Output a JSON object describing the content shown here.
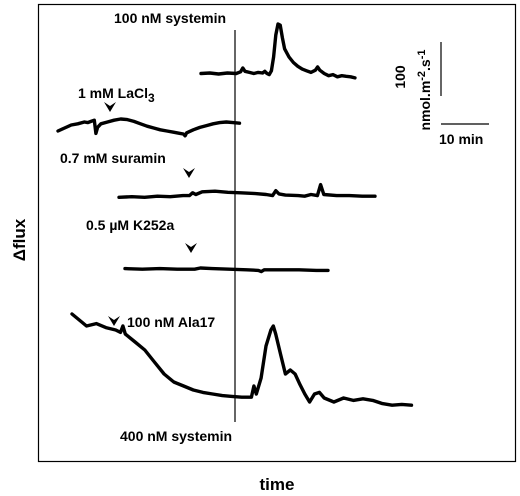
{
  "chart_data": {
    "type": "line",
    "title": "",
    "xlabel": "time",
    "ylabel": "Δflux",
    "scale_bar": {
      "y_value": "100",
      "y_unit": "nmol.m-2.s-1",
      "x_value": "10 min"
    },
    "traces": [
      {
        "label": "100 nM systemin",
        "points": [
          [
            0,
            -10
          ],
          [
            2,
            -9
          ],
          [
            4,
            -11
          ],
          [
            6,
            -9
          ],
          [
            8,
            -10
          ],
          [
            9,
            -7
          ],
          [
            9.5,
            0
          ],
          [
            10,
            -6
          ],
          [
            11,
            -8
          ],
          [
            12,
            -10
          ],
          [
            13,
            -8
          ],
          [
            14,
            -9
          ],
          [
            14.5,
            -6
          ],
          [
            15,
            -10
          ],
          [
            15.5,
            -12
          ],
          [
            16,
            -5
          ],
          [
            16.5,
            20
          ],
          [
            17,
            60
          ],
          [
            17.5,
            80
          ],
          [
            18,
            78
          ],
          [
            18.5,
            55
          ],
          [
            19,
            35
          ],
          [
            20,
            20
          ],
          [
            21,
            10
          ],
          [
            22,
            3
          ],
          [
            23,
            -2
          ],
          [
            24,
            -5
          ],
          [
            25,
            -8
          ],
          [
            26,
            -4
          ],
          [
            26.5,
            2
          ],
          [
            27,
            -4
          ],
          [
            28,
            -10
          ],
          [
            29,
            -14
          ],
          [
            30,
            -12
          ],
          [
            31,
            -16
          ],
          [
            32,
            -14
          ],
          [
            33,
            -15
          ],
          [
            34,
            -16
          ],
          [
            35,
            -18
          ]
        ]
      },
      {
        "label": "1 mM LaCl3",
        "points": [
          [
            0,
            -10
          ],
          [
            2,
            -5
          ],
          [
            4,
            0
          ],
          [
            6,
            2
          ],
          [
            8,
            5
          ],
          [
            9,
            4
          ],
          [
            10,
            6
          ],
          [
            11,
            8
          ],
          [
            11.5,
            -14
          ],
          [
            12,
            -4
          ],
          [
            13,
            2
          ],
          [
            15,
            5
          ],
          [
            17,
            8
          ],
          [
            19,
            10
          ],
          [
            21,
            9
          ],
          [
            23,
            6
          ],
          [
            25,
            2
          ],
          [
            27,
            -2
          ],
          [
            29,
            -5
          ],
          [
            31,
            -8
          ],
          [
            33,
            -10
          ],
          [
            35,
            -12
          ],
          [
            37,
            -14
          ],
          [
            38,
            -15
          ],
          [
            38.5,
            -18
          ],
          [
            39,
            -13
          ],
          [
            41,
            -8
          ],
          [
            43,
            -4
          ],
          [
            45,
            -1
          ],
          [
            47,
            2
          ],
          [
            49,
            4
          ],
          [
            51,
            5
          ],
          [
            53,
            4
          ],
          [
            55,
            3
          ]
        ]
      },
      {
        "label": "0.7 mM suramin",
        "points": [
          [
            0,
            -15
          ],
          [
            2,
            -14
          ],
          [
            4,
            -15
          ],
          [
            6,
            -13
          ],
          [
            8,
            -14
          ],
          [
            10,
            -12
          ],
          [
            11,
            -12
          ],
          [
            11.5,
            -7
          ],
          [
            12,
            -10
          ],
          [
            13,
            -5
          ],
          [
            15,
            -4
          ],
          [
            17,
            -6
          ],
          [
            19,
            -7
          ],
          [
            21,
            -8
          ],
          [
            23,
            -10
          ],
          [
            24,
            -12
          ],
          [
            24.5,
            -3
          ],
          [
            25,
            -9
          ],
          [
            26,
            -11
          ],
          [
            28,
            -12
          ],
          [
            29,
            -13
          ],
          [
            30,
            -10
          ],
          [
            31,
            -12
          ],
          [
            31.5,
            8
          ],
          [
            32,
            -10
          ],
          [
            34,
            -12
          ],
          [
            36,
            -12
          ],
          [
            38,
            -13
          ],
          [
            40,
            -13
          ]
        ]
      },
      {
        "label": "0.5 µM K252a",
        "points": [
          [
            0,
            -6
          ],
          [
            3,
            -7
          ],
          [
            6,
            -6
          ],
          [
            9,
            -7
          ],
          [
            12,
            -7
          ],
          [
            13,
            -5
          ],
          [
            15,
            -6
          ],
          [
            18,
            -7
          ],
          [
            21,
            -8
          ],
          [
            23,
            -9
          ],
          [
            23.5,
            -11
          ],
          [
            24,
            -8
          ],
          [
            27,
            -8
          ],
          [
            30,
            -8
          ],
          [
            33,
            -9
          ],
          [
            35,
            -9
          ]
        ]
      },
      {
        "label": "400 nM systemin",
        "treatment_label": "100 nM Ala17",
        "points": [
          [
            0,
            20
          ],
          [
            2,
            10
          ],
          [
            3,
            5
          ],
          [
            5,
            8
          ],
          [
            7,
            3
          ],
          [
            9,
            0
          ],
          [
            10,
            -3
          ],
          [
            10.5,
            5
          ],
          [
            11,
            -5
          ],
          [
            13,
            -15
          ],
          [
            15,
            -25
          ],
          [
            17,
            -40
          ],
          [
            19,
            -55
          ],
          [
            21,
            -65
          ],
          [
            23,
            -70
          ],
          [
            25,
            -75
          ],
          [
            27,
            -78
          ],
          [
            29,
            -80
          ],
          [
            31,
            -82
          ],
          [
            33,
            -83
          ],
          [
            35,
            -84
          ],
          [
            37,
            -84
          ],
          [
            37.5,
            -70
          ],
          [
            38,
            -80
          ],
          [
            39,
            -60
          ],
          [
            40,
            -20
          ],
          [
            41,
            0
          ],
          [
            41.5,
            5
          ],
          [
            42,
            -5
          ],
          [
            43,
            -30
          ],
          [
            44,
            -55
          ],
          [
            45,
            -50
          ],
          [
            46,
            -55
          ],
          [
            47,
            -68
          ],
          [
            48,
            -80
          ],
          [
            49,
            -90
          ],
          [
            50,
            -80
          ],
          [
            51,
            -78
          ],
          [
            52,
            -85
          ],
          [
            54,
            -90
          ],
          [
            56,
            -85
          ],
          [
            58,
            -88
          ],
          [
            60,
            -86
          ],
          [
            62,
            -88
          ],
          [
            64,
            -92
          ],
          [
            66,
            -94
          ],
          [
            68,
            -93
          ],
          [
            70,
            -94
          ]
        ]
      }
    ]
  }
}
